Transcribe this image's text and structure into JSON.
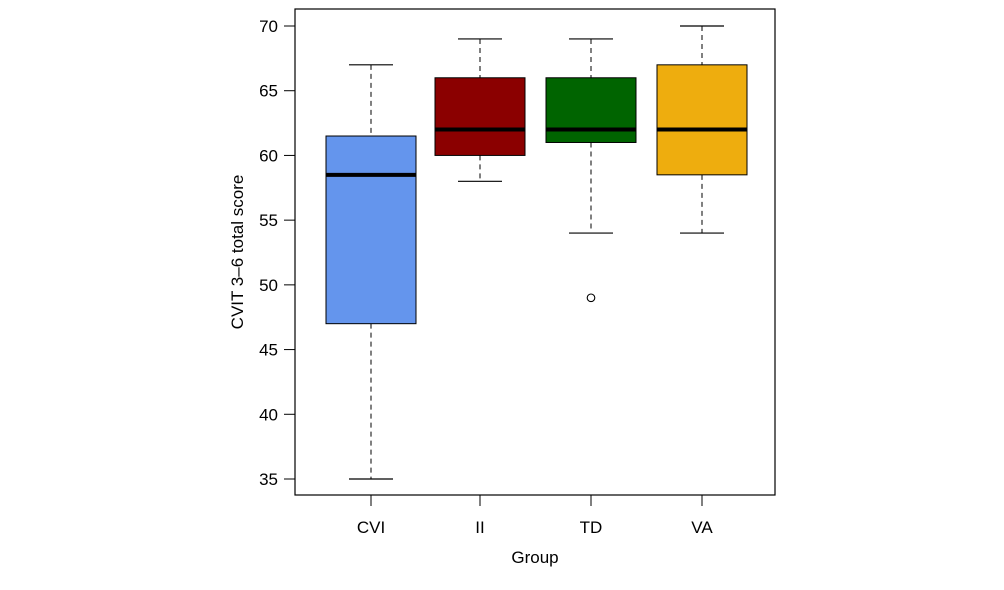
{
  "chart_data": {
    "type": "boxplot",
    "title": "",
    "xlabel": "Group",
    "ylabel": "CVIT 3–6 total score",
    "ylim": [
      34,
      71
    ],
    "yticks": [
      35,
      40,
      45,
      50,
      55,
      60,
      65,
      70
    ],
    "grid": false,
    "categories": [
      "CVI",
      "II",
      "TD",
      "VA"
    ],
    "series": [
      {
        "name": "CVI",
        "color": "#6495ED",
        "whisker_low": 35,
        "q1": 47,
        "median": 58.5,
        "q3": 61.5,
        "whisker_high": 67,
        "outliers": []
      },
      {
        "name": "II",
        "color": "#8B0000",
        "whisker_low": 58,
        "q1": 60,
        "median": 62,
        "q3": 66,
        "whisker_high": 69,
        "outliers": []
      },
      {
        "name": "TD",
        "color": "#006400",
        "whisker_low": 54,
        "q1": 61,
        "median": 62,
        "q3": 66,
        "whisker_high": 69,
        "outliers": [
          49
        ]
      },
      {
        "name": "VA",
        "color": "#EEAD0E",
        "whisker_low": 54,
        "q1": 58.5,
        "median": 62,
        "q3": 67,
        "whisker_high": 70,
        "outliers": []
      }
    ]
  }
}
